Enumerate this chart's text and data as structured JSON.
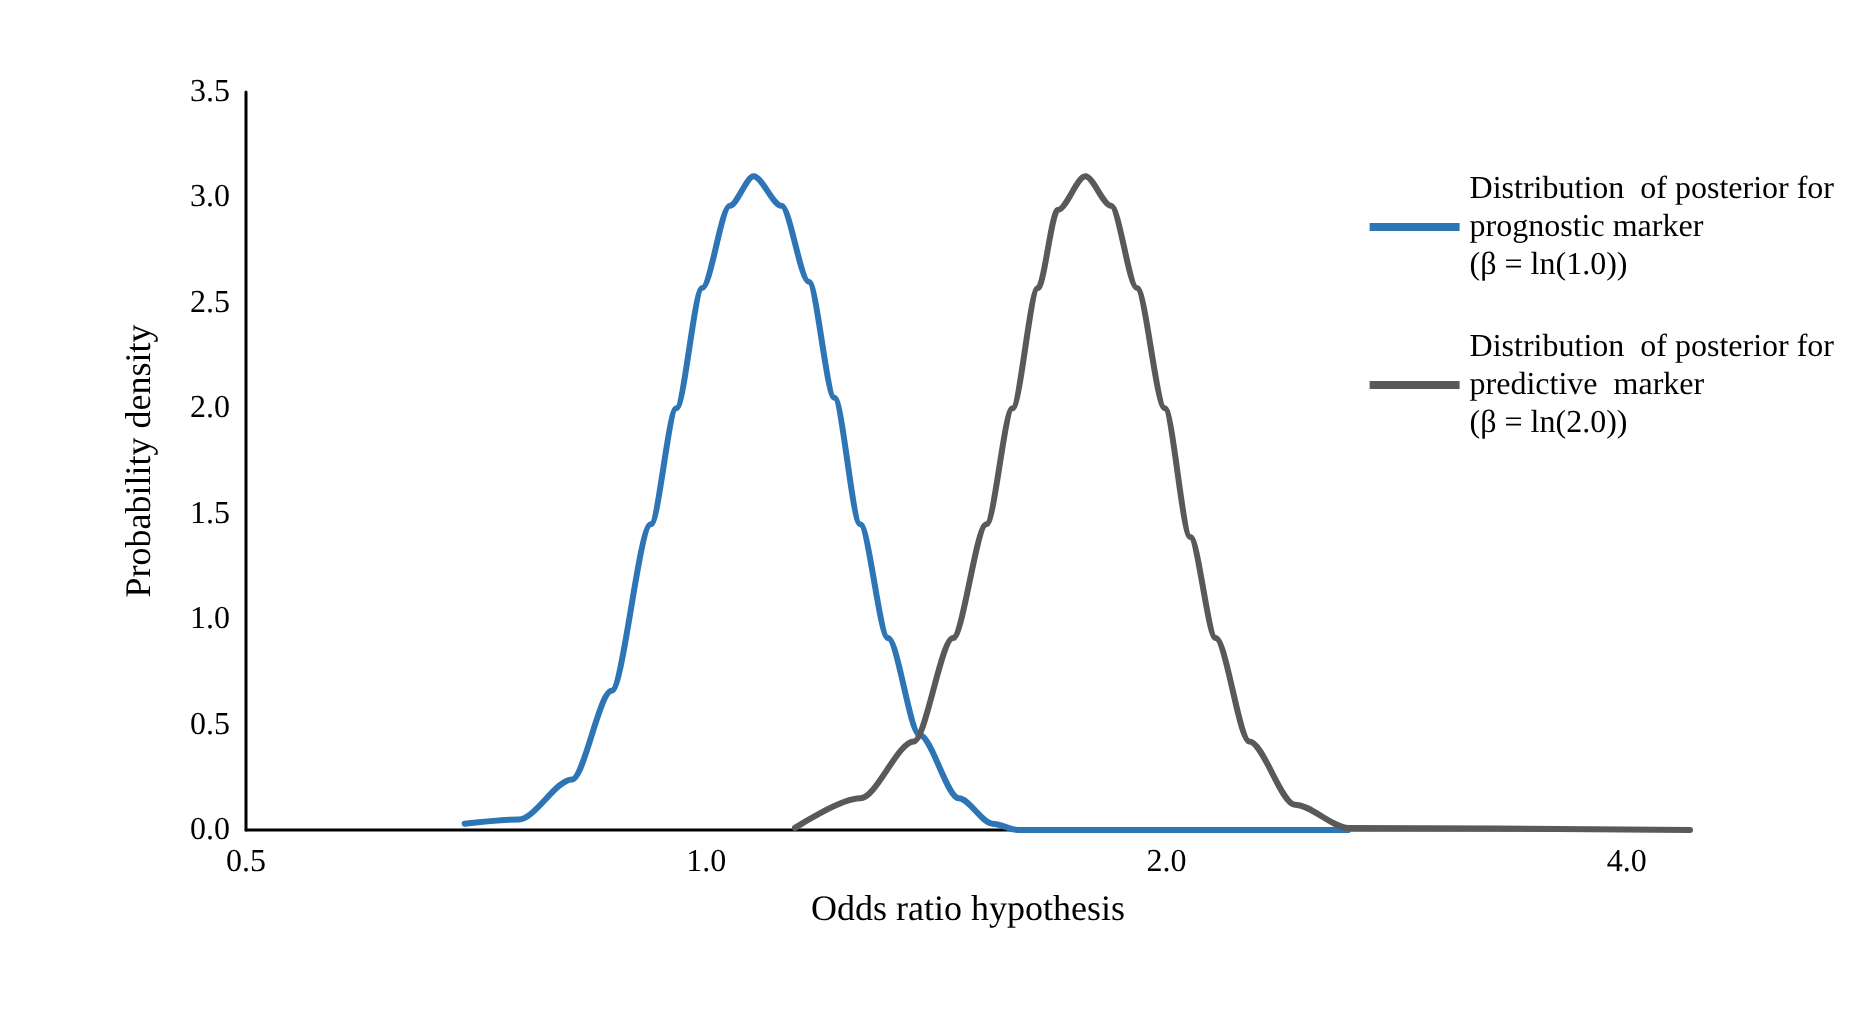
{
  "chart_data": {
    "type": "line",
    "xlabel": "Odds ratio hypothesis",
    "ylabel": "Probability density",
    "log": "x",
    "xlim": [
      0.5,
      4.4
    ],
    "ylim": [
      0,
      3.5
    ],
    "xticks": [
      0.5,
      {
        "value": 1,
        "label": "1.0"
      },
      {
        "value": 2,
        "label": "2.0"
      },
      {
        "value": 4,
        "label": "4.0"
      }
    ],
    "yticks": [
      {
        "value": 0,
        "label": "0.0"
      },
      0.5,
      {
        "value": 1,
        "label": "1.0"
      },
      1.5,
      {
        "value": 2,
        "label": "2.0"
      },
      2.5,
      {
        "value": 3,
        "label": "3.0"
      },
      3.5
    ],
    "grid": false,
    "legend": "top right",
    "marker": "none",
    "line_style": "solid",
    "series": [
      {
        "name": "Distribution  of posterior for\nprognostic marker\n(β = ln(1.0))",
        "color": "#2e75b6",
        "x": [
          0.695,
          0.754,
          0.817,
          0.867,
          0.92,
          0.956,
          0.994,
          1.036,
          1.074,
          1.12,
          1.167,
          1.213,
          1.261,
          1.315,
          1.379,
          1.463,
          1.539,
          1.6,
          2.63
        ],
        "values": [
          0.03,
          0.05,
          0.24,
          0.66,
          1.45,
          2.0,
          2.57,
          2.96,
          3.1,
          2.96,
          2.6,
          2.05,
          1.45,
          0.91,
          0.45,
          0.15,
          0.03,
          0,
          0
        ]
      },
      {
        "name": "Distribution  of posterior for\npredictive  marker\n(β = ln(2.0))",
        "color": "#595959",
        "x": [
          1.143,
          1.261,
          1.367,
          1.45,
          1.525,
          1.586,
          1.648,
          1.698,
          1.77,
          1.84,
          1.913,
          1.995,
          2.073,
          2.154,
          2.266,
          2.427,
          2.63,
          4.4
        ],
        "values": [
          0.01,
          0.15,
          0.42,
          0.91,
          1.45,
          2.0,
          2.57,
          2.94,
          3.1,
          2.96,
          2.57,
          2.0,
          1.39,
          0.91,
          0.42,
          0.12,
          0.01,
          0
        ]
      }
    ]
  }
}
